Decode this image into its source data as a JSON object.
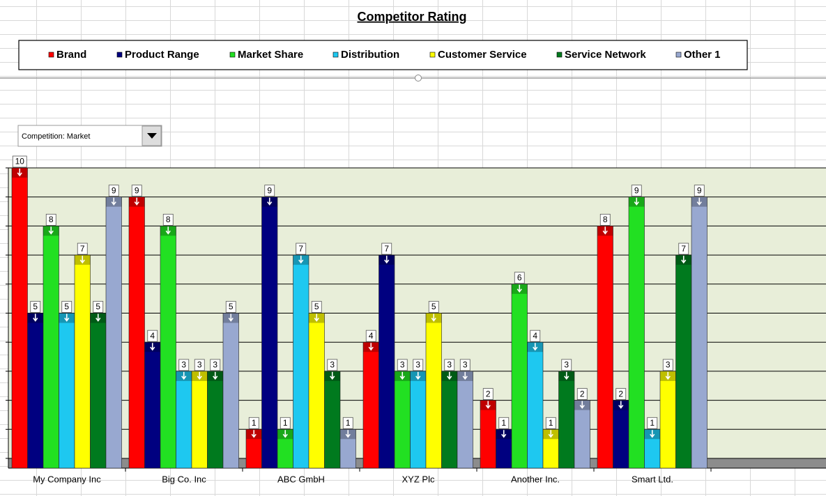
{
  "chart_data": {
    "type": "bar",
    "title": "Competitor Rating",
    "categories": [
      "My Company Inc",
      "Big Co. Inc",
      "ABC GmbH",
      "XYZ Plc",
      "Another Inc.",
      "Smart Ltd."
    ],
    "series": [
      {
        "name": "Brand",
        "color": "#ff0000",
        "values": [
          10,
          9,
          1,
          4,
          2,
          8
        ]
      },
      {
        "name": "Product Range",
        "color": "#000080",
        "values": [
          5,
          4,
          9,
          7,
          1,
          2
        ]
      },
      {
        "name": "Market Share",
        "color": "#22e022",
        "values": [
          8,
          8,
          1,
          3,
          6,
          9
        ]
      },
      {
        "name": "Distribution",
        "color": "#1ec8f0",
        "values": [
          5,
          3,
          7,
          3,
          4,
          1
        ]
      },
      {
        "name": "Customer Service",
        "color": "#ffff00",
        "values": [
          7,
          3,
          5,
          5,
          1,
          3
        ]
      },
      {
        "name": "Service Network",
        "color": "#007a1e",
        "values": [
          5,
          3,
          3,
          3,
          3,
          7
        ]
      },
      {
        "name": "Other 1",
        "color": "#98a8d0",
        "values": [
          9,
          5,
          1,
          3,
          2,
          9
        ]
      }
    ],
    "ylim": [
      0,
      10
    ],
    "yticks": [
      0,
      1,
      2,
      3,
      4,
      5,
      6,
      7,
      8,
      9,
      10
    ],
    "grid": true,
    "data_labels": true
  },
  "ui": {
    "dropdown": "Competition: Market"
  }
}
